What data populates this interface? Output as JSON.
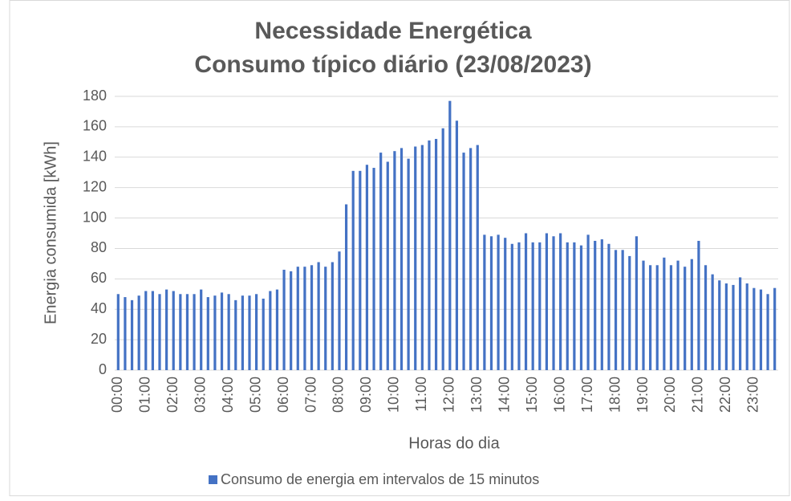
{
  "chart_data": {
    "type": "bar",
    "title": "Necessidade Energética",
    "subtitle": "Consumo típico diário (23/08/2023)",
    "x_label": "Horas do dia",
    "y_label": "Energia consumida [kWh]",
    "categories": [
      "00:00",
      null,
      null,
      null,
      "01:00",
      null,
      null,
      null,
      "02:00",
      null,
      null,
      null,
      "03:00",
      null,
      null,
      null,
      "04:00",
      null,
      null,
      null,
      "05:00",
      null,
      null,
      null,
      "06:00",
      null,
      null,
      null,
      "07:00",
      null,
      null,
      null,
      "08:00",
      null,
      null,
      null,
      "09:00",
      null,
      null,
      null,
      "10:00",
      null,
      null,
      null,
      "11:00",
      null,
      null,
      null,
      "12:00",
      null,
      null,
      null,
      "13:00",
      null,
      null,
      null,
      "14:00",
      null,
      null,
      null,
      "15:00",
      null,
      null,
      null,
      "16:00",
      null,
      null,
      null,
      "17:00",
      null,
      null,
      null,
      "18:00",
      null,
      null,
      null,
      "19:00",
      null,
      null,
      null,
      "20:00",
      null,
      null,
      null,
      "21:00",
      null,
      null,
      null,
      "22:00",
      null,
      null,
      null,
      "23:00",
      null,
      null,
      null
    ],
    "series": [
      {
        "name": "Consumo de energia em intervalos de 15 minutos",
        "color": "#4472c4",
        "values": [
          50,
          48,
          46,
          49,
          52,
          52,
          50,
          53,
          52,
          50,
          50,
          50,
          53,
          48,
          49,
          51,
          50,
          46,
          49,
          49,
          50,
          47,
          52,
          53,
          66,
          65,
          68,
          68,
          69,
          71,
          68,
          71,
          78,
          109,
          131,
          131,
          135,
          133,
          143,
          137,
          144,
          146,
          139,
          147,
          148,
          151,
          152,
          159,
          177,
          164,
          143,
          146,
          148,
          89,
          88,
          89,
          87,
          83,
          84,
          90,
          84,
          84,
          90,
          88,
          90,
          84,
          84,
          82,
          89,
          85,
          86,
          83,
          79,
          79,
          75,
          88,
          72,
          69,
          69,
          74,
          69,
          72,
          68,
          73,
          85,
          69,
          63,
          59,
          57,
          56,
          61,
          57,
          54,
          53,
          50,
          54
        ]
      }
    ],
    "ylim": [
      0,
      180
    ],
    "yticks": [
      0,
      20,
      40,
      60,
      80,
      100,
      120,
      140,
      160,
      180
    ],
    "grid": true,
    "legend": "bottom"
  }
}
